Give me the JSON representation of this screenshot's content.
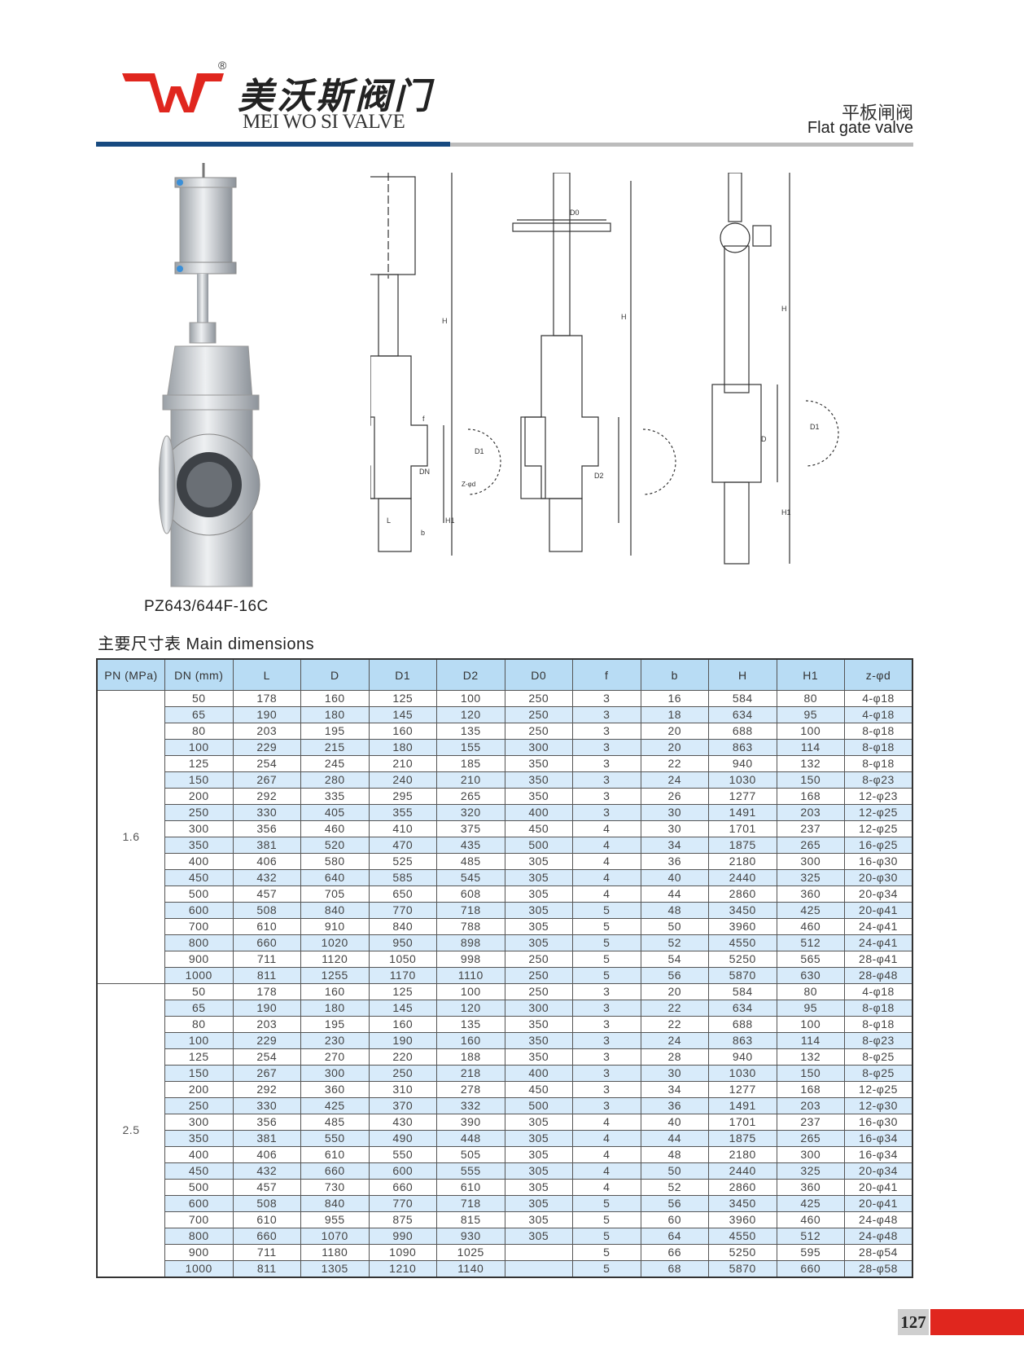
{
  "brand": {
    "logo_text": "WV",
    "registered": "®",
    "name_cn": "美沃斯阀门",
    "name_en": "MEI WO SI VALVE",
    "logo_color": "#e0261e"
  },
  "header": {
    "title_cn": "平板闸阀",
    "title_en": "Flat gate valve",
    "accent_color": "#174a80"
  },
  "product": {
    "model": "PZ643/644F-16C"
  },
  "drawings": {
    "labels": {
      "H": "H",
      "H1": "H1",
      "DN": "DN",
      "D2": "D2",
      "D": "D",
      "D1": "D1",
      "L": "L",
      "b": "b",
      "f": "f",
      "zd": "Z-φd",
      "D0": "D0"
    }
  },
  "table": {
    "title": "主要尺寸表 Main dimensions",
    "headers": [
      "PN (MPa)",
      "DN (mm)",
      "L",
      "D",
      "D1",
      "D2",
      "D0",
      "f",
      "b",
      "H",
      "H1",
      "z-φd"
    ],
    "groups": [
      {
        "pn": "1.6",
        "rows": [
          [
            "50",
            "178",
            "160",
            "125",
            "100",
            "250",
            "3",
            "16",
            "584",
            "80",
            "4-φ18"
          ],
          [
            "65",
            "190",
            "180",
            "145",
            "120",
            "250",
            "3",
            "18",
            "634",
            "95",
            "4-φ18"
          ],
          [
            "80",
            "203",
            "195",
            "160",
            "135",
            "250",
            "3",
            "20",
            "688",
            "100",
            "8-φ18"
          ],
          [
            "100",
            "229",
            "215",
            "180",
            "155",
            "300",
            "3",
            "20",
            "863",
            "114",
            "8-φ18"
          ],
          [
            "125",
            "254",
            "245",
            "210",
            "185",
            "350",
            "3",
            "22",
            "940",
            "132",
            "8-φ18"
          ],
          [
            "150",
            "267",
            "280",
            "240",
            "210",
            "350",
            "3",
            "24",
            "1030",
            "150",
            "8-φ23"
          ],
          [
            "200",
            "292",
            "335",
            "295",
            "265",
            "350",
            "3",
            "26",
            "1277",
            "168",
            "12-φ23"
          ],
          [
            "250",
            "330",
            "405",
            "355",
            "320",
            "400",
            "3",
            "30",
            "1491",
            "203",
            "12-φ25"
          ],
          [
            "300",
            "356",
            "460",
            "410",
            "375",
            "450",
            "4",
            "30",
            "1701",
            "237",
            "12-φ25"
          ],
          [
            "350",
            "381",
            "520",
            "470",
            "435",
            "500",
            "4",
            "34",
            "1875",
            "265",
            "16-φ25"
          ],
          [
            "400",
            "406",
            "580",
            "525",
            "485",
            "305",
            "4",
            "36",
            "2180",
            "300",
            "16-φ30"
          ],
          [
            "450",
            "432",
            "640",
            "585",
            "545",
            "305",
            "4",
            "40",
            "2440",
            "325",
            "20-φ30"
          ],
          [
            "500",
            "457",
            "705",
            "650",
            "608",
            "305",
            "4",
            "44",
            "2860",
            "360",
            "20-φ34"
          ],
          [
            "600",
            "508",
            "840",
            "770",
            "718",
            "305",
            "5",
            "48",
            "3450",
            "425",
            "20-φ41"
          ],
          [
            "700",
            "610",
            "910",
            "840",
            "788",
            "305",
            "5",
            "50",
            "3960",
            "460",
            "24-φ41"
          ],
          [
            "800",
            "660",
            "1020",
            "950",
            "898",
            "305",
            "5",
            "52",
            "4550",
            "512",
            "24-φ41"
          ],
          [
            "900",
            "711",
            "1120",
            "1050",
            "998",
            "250",
            "5",
            "54",
            "5250",
            "565",
            "28-φ41"
          ],
          [
            "1000",
            "811",
            "1255",
            "1170",
            "1110",
            "250",
            "5",
            "56",
            "5870",
            "630",
            "28-φ48"
          ]
        ]
      },
      {
        "pn": "2.5",
        "rows": [
          [
            "50",
            "178",
            "160",
            "125",
            "100",
            "250",
            "3",
            "20",
            "584",
            "80",
            "4-φ18"
          ],
          [
            "65",
            "190",
            "180",
            "145",
            "120",
            "300",
            "3",
            "22",
            "634",
            "95",
            "8-φ18"
          ],
          [
            "80",
            "203",
            "195",
            "160",
            "135",
            "350",
            "3",
            "22",
            "688",
            "100",
            "8-φ18"
          ],
          [
            "100",
            "229",
            "230",
            "190",
            "160",
            "350",
            "3",
            "24",
            "863",
            "114",
            "8-φ23"
          ],
          [
            "125",
            "254",
            "270",
            "220",
            "188",
            "350",
            "3",
            "28",
            "940",
            "132",
            "8-φ25"
          ],
          [
            "150",
            "267",
            "300",
            "250",
            "218",
            "400",
            "3",
            "30",
            "1030",
            "150",
            "8-φ25"
          ],
          [
            "200",
            "292",
            "360",
            "310",
            "278",
            "450",
            "3",
            "34",
            "1277",
            "168",
            "12-φ25"
          ],
          [
            "250",
            "330",
            "425",
            "370",
            "332",
            "500",
            "3",
            "36",
            "1491",
            "203",
            "12-φ30"
          ],
          [
            "300",
            "356",
            "485",
            "430",
            "390",
            "305",
            "4",
            "40",
            "1701",
            "237",
            "16-φ30"
          ],
          [
            "350",
            "381",
            "550",
            "490",
            "448",
            "305",
            "4",
            "44",
            "1875",
            "265",
            "16-φ34"
          ],
          [
            "400",
            "406",
            "610",
            "550",
            "505",
            "305",
            "4",
            "48",
            "2180",
            "300",
            "16-φ34"
          ],
          [
            "450",
            "432",
            "660",
            "600",
            "555",
            "305",
            "4",
            "50",
            "2440",
            "325",
            "20-φ34"
          ],
          [
            "500",
            "457",
            "730",
            "660",
            "610",
            "305",
            "4",
            "52",
            "2860",
            "360",
            "20-φ41"
          ],
          [
            "600",
            "508",
            "840",
            "770",
            "718",
            "305",
            "5",
            "56",
            "3450",
            "425",
            "20-φ41"
          ],
          [
            "700",
            "610",
            "955",
            "875",
            "815",
            "305",
            "5",
            "60",
            "3960",
            "460",
            "24-φ48"
          ],
          [
            "800",
            "660",
            "1070",
            "990",
            "930",
            "305",
            "5",
            "64",
            "4550",
            "512",
            "24-φ48"
          ],
          [
            "900",
            "711",
            "1180",
            "1090",
            "1025",
            "",
            "5",
            "66",
            "5250",
            "595",
            "28-φ54"
          ],
          [
            "1000",
            "811",
            "1305",
            "1210",
            "1140",
            "",
            "5",
            "68",
            "5870",
            "660",
            "28-φ58"
          ]
        ]
      }
    ]
  },
  "footer": {
    "page_number": "127",
    "accent_color": "#e0261e"
  }
}
